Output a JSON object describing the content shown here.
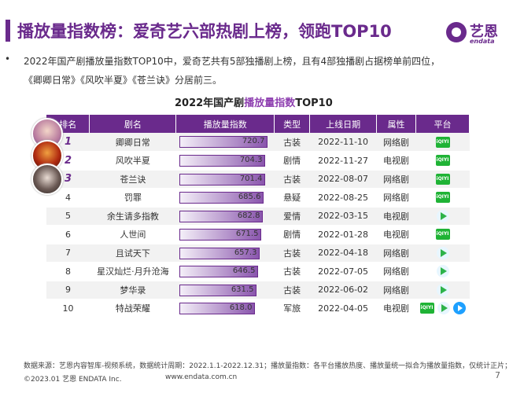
{
  "header": {
    "title": "播放量指数榜：爱奇艺六部热剧上榜，领跑TOP10",
    "logo_cn": "艺恩",
    "logo_en": "endata"
  },
  "description": {
    "bullet": "•",
    "line1": "2022年国产剧播放量指数TOP10中，爱奇艺共有5部独播剧上榜，且有4部独播剧占据榜单前四位，",
    "line2": "《卿卿日常》《风吹半夏》《苍兰诀》分居前三。"
  },
  "chart": {
    "title_prefix": "2022年国产剧",
    "title_highlight": "播放量指数",
    "title_suffix": "TOP10"
  },
  "table": {
    "headers": [
      "排名",
      "剧名",
      "播放量指数",
      "类型",
      "上线日期",
      "属性",
      "平台"
    ],
    "rows": [
      {
        "rank": "1",
        "name": "卿卿日常",
        "index": "720.7",
        "genre": "古装",
        "date": "2022-11-10",
        "attr": "网络剧"
      },
      {
        "rank": "2",
        "name": "风吹半夏",
        "index": "704.3",
        "genre": "剧情",
        "date": "2022-11-27",
        "attr": "电视剧"
      },
      {
        "rank": "3",
        "name": "苍兰诀",
        "index": "701.4",
        "genre": "古装",
        "date": "2022-08-07",
        "attr": "网络剧"
      },
      {
        "rank": "4",
        "name": "罚罪",
        "index": "685.6",
        "genre": "悬疑",
        "date": "2022-08-25",
        "attr": "网络剧"
      },
      {
        "rank": "5",
        "name": "余生请多指教",
        "index": "682.8",
        "genre": "爱情",
        "date": "2022-03-15",
        "attr": "电视剧"
      },
      {
        "rank": "6",
        "name": "人世间",
        "index": "671.5",
        "genre": "剧情",
        "date": "2022-01-28",
        "attr": "电视剧"
      },
      {
        "rank": "7",
        "name": "且试天下",
        "index": "657.3",
        "genre": "古装",
        "date": "2022-04-18",
        "attr": "网络剧"
      },
      {
        "rank": "8",
        "name": "星汉灿烂·月升沧海",
        "index": "646.5",
        "genre": "古装",
        "date": "2022-07-05",
        "attr": "网络剧"
      },
      {
        "rank": "9",
        "name": "梦华录",
        "index": "631.5",
        "genre": "古装",
        "date": "2022-06-02",
        "attr": "网络剧"
      },
      {
        "rank": "10",
        "name": "特战荣耀",
        "index": "618.0",
        "genre": "军旅",
        "date": "2022-04-05",
        "attr": "电视剧"
      }
    ],
    "platform_text": "iQIYI"
  },
  "chart_data": {
    "type": "bar",
    "title": "2022年国产剧播放量指数TOP10",
    "categories": [
      "卿卿日常",
      "风吹半夏",
      "苍兰诀",
      "罚罪",
      "余生请多指教",
      "人世间",
      "且试天下",
      "星汉灿烂·月升沧海",
      "梦华录",
      "特战荣耀"
    ],
    "values": [
      720.7,
      704.3,
      701.4,
      685.6,
      682.8,
      671.5,
      657.3,
      646.5,
      631.5,
      618.0
    ]
  },
  "platforms": [
    [
      "iqiyi"
    ],
    [
      "iqiyi"
    ],
    [
      "iqiyi"
    ],
    [
      "iqiyi"
    ],
    [
      "tencent"
    ],
    [
      "iqiyi"
    ],
    [
      "tencent"
    ],
    [
      "tencent"
    ],
    [
      "tencent"
    ],
    [
      "iqiyi",
      "tencent",
      "youku"
    ]
  ],
  "footer": {
    "source": "数据来源：艺恩内容智库-视频系统，数据统计周期：2022.1.1-2022.12.31；播放量指数：各平台播放热度、播放量统一拟合为播放量指数，仅统计正片；",
    "copyright": "©2023.01 艺恩 ENDATA Inc.",
    "url": "www.endata.com.cn",
    "page": "7"
  },
  "colors": {
    "brand": "#6a2a8c",
    "bar_start": "#f4eff8",
    "bar_end": "#8a56ad",
    "row_shade": "#f2f2f2"
  }
}
